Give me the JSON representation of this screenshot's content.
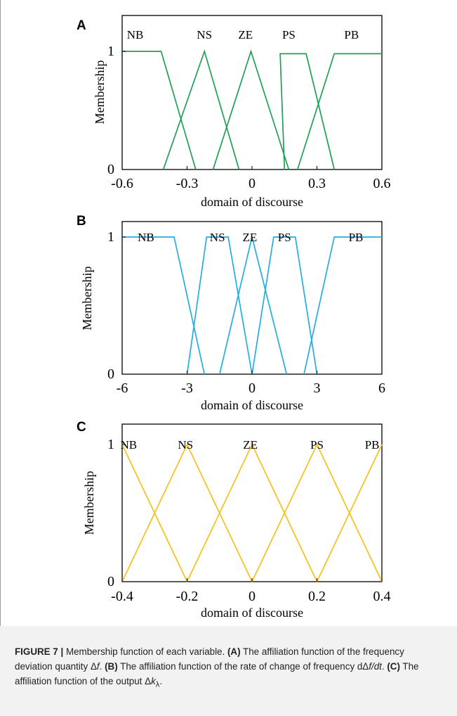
{
  "figure": {
    "colors": {
      "A": "#1fa055",
      "B": "#22aee0",
      "C": "#f6c11c",
      "axes": "#000000"
    },
    "caption": {
      "label": "FIGURE 7 |",
      "intro": " Membership function of each variable. ",
      "a_ref": "(A)",
      "a_text": " The affiliation function of the frequency deviation quantity Δ",
      "a_var": "f",
      "b_ref": "(B)",
      "b_text": " The affiliation function of the rate of change of frequency dΔ",
      "b_var": "f/dt",
      "c_ref": "(C)",
      "c_text": " The affiliation function of the output Δ",
      "c_var": "k",
      "c_sub": "λ",
      "end": "."
    }
  },
  "chart_data": [
    {
      "type": "line",
      "panel": "A",
      "xlabel": "domain of discourse",
      "ylabel": "Membership",
      "xlim": [
        -0.6,
        0.6
      ],
      "ylim": [
        0,
        1
      ],
      "xticks": [
        "-0.6",
        "-0.3",
        "0",
        "0.3",
        "0.6"
      ],
      "xtick_values": [
        -0.6,
        -0.3,
        0,
        0.3,
        0.6
      ],
      "yticks": [
        "0",
        "1"
      ],
      "ytick_values": [
        0,
        1
      ],
      "set_labels": [
        {
          "text": "NB",
          "x": -0.54
        },
        {
          "text": "NS",
          "x": -0.22
        },
        {
          "text": "ZE",
          "x": -0.03
        },
        {
          "text": "PS",
          "x": 0.17
        },
        {
          "text": "PB",
          "x": 0.46
        }
      ],
      "series": [
        {
          "x": [
            -0.6,
            -0.42,
            -0.26
          ],
          "y": [
            1,
            1,
            0
          ]
        },
        {
          "x": [
            -0.41,
            -0.22,
            -0.06
          ],
          "y": [
            0,
            1,
            0
          ]
        },
        {
          "x": [
            -0.18,
            -0.005,
            0.17
          ],
          "y": [
            0,
            1,
            0
          ]
        },
        {
          "x": [
            0.15,
            0.13,
            0.25,
            0.38
          ],
          "y": [
            0,
            0.98,
            0.98,
            0
          ]
        },
        {
          "x": [
            0.21,
            0.38,
            0.6
          ],
          "y": [
            0,
            0.98,
            0.98
          ]
        }
      ]
    },
    {
      "type": "line",
      "panel": "B",
      "xlabel": "domain of discourse",
      "ylabel": "Membership",
      "xlim": [
        -6,
        6
      ],
      "ylim": [
        0,
        1
      ],
      "xticks": [
        "-6",
        "-3",
        "0",
        "3",
        "6"
      ],
      "xtick_values": [
        -6,
        -3,
        0,
        3,
        6
      ],
      "yticks": [
        "0",
        "1"
      ],
      "ytick_values": [
        0,
        1
      ],
      "set_labels": [
        {
          "text": "NB",
          "x": -4.9
        },
        {
          "text": "NS",
          "x": -1.6
        },
        {
          "text": "ZE",
          "x": -0.1
        },
        {
          "text": "PS",
          "x": 1.5
        },
        {
          "text": "PB",
          "x": 4.8
        }
      ],
      "series": [
        {
          "x": [
            -6,
            -3.6,
            -2.2
          ],
          "y": [
            1,
            1,
            0
          ]
        },
        {
          "x": [
            -3,
            -2.1,
            -1.1,
            0
          ],
          "y": [
            0,
            1,
            1,
            0
          ]
        },
        {
          "x": [
            -1.5,
            0,
            1.6
          ],
          "y": [
            0,
            1,
            0
          ]
        },
        {
          "x": [
            0,
            1.0,
            2.0,
            3.0
          ],
          "y": [
            0,
            1,
            1,
            0
          ]
        },
        {
          "x": [
            2.4,
            3.8,
            6
          ],
          "y": [
            0,
            1,
            1
          ]
        }
      ]
    },
    {
      "type": "line",
      "panel": "C",
      "xlabel": "domain of discourse",
      "ylabel": "Membership",
      "xlim": [
        -0.4,
        0.4
      ],
      "ylim": [
        0,
        1
      ],
      "xticks": [
        "-0.4",
        "-0.2",
        "0",
        "0.2",
        "0.4"
      ],
      "xtick_values": [
        -0.4,
        -0.2,
        0,
        0.2,
        0.4
      ],
      "yticks": [
        "0",
        "1"
      ],
      "ytick_values": [
        0,
        1
      ],
      "set_labels": [
        {
          "text": "NB",
          "x": -0.38
        },
        {
          "text": "NS",
          "x": -0.205
        },
        {
          "text": "ZE",
          "x": -0.005
        },
        {
          "text": "PS",
          "x": 0.2
        },
        {
          "text": "PB",
          "x": 0.37
        }
      ],
      "series": [
        {
          "x": [
            -0.4,
            -0.2
          ],
          "y": [
            1,
            0
          ]
        },
        {
          "x": [
            -0.4,
            -0.2,
            0
          ],
          "y": [
            0,
            1,
            0
          ]
        },
        {
          "x": [
            -0.2,
            0,
            0.2
          ],
          "y": [
            0,
            1,
            0
          ]
        },
        {
          "x": [
            0,
            0.2,
            0.4
          ],
          "y": [
            0,
            1,
            0
          ]
        },
        {
          "x": [
            0.2,
            0.4
          ],
          "y": [
            0,
            1
          ]
        }
      ]
    }
  ]
}
